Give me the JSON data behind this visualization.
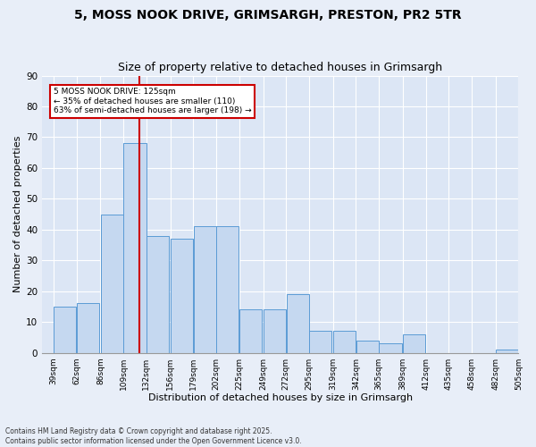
{
  "title_line1": "5, MOSS NOOK DRIVE, GRIMSARGH, PRESTON, PR2 5TR",
  "title_line2": "Size of property relative to detached houses in Grimsargh",
  "xlabel": "Distribution of detached houses by size in Grimsargh",
  "ylabel": "Number of detached properties",
  "bar_color": "#c5d8f0",
  "bar_edge_color": "#5b9bd5",
  "background_color": "#dce6f5",
  "grid_color": "#ffffff",
  "annotation_box_color": "#cc0000",
  "vline_color": "#cc0000",
  "vline_x": 125,
  "annotation_text": "5 MOSS NOOK DRIVE: 125sqm\n← 35% of detached houses are smaller (110)\n63% of semi-detached houses are larger (198) →",
  "bins": [
    39,
    62,
    86,
    109,
    132,
    156,
    179,
    202,
    225,
    249,
    272,
    295,
    319,
    342,
    365,
    389,
    412,
    435,
    458,
    482,
    505
  ],
  "counts": [
    15,
    16,
    45,
    68,
    38,
    37,
    41,
    41,
    14,
    14,
    19,
    7,
    7,
    4,
    3,
    6,
    0,
    0,
    0,
    1
  ],
  "ylim": [
    0,
    90
  ],
  "yticks": [
    0,
    10,
    20,
    30,
    40,
    50,
    60,
    70,
    80,
    90
  ],
  "footer": "Contains HM Land Registry data © Crown copyright and database right 2025.\nContains public sector information licensed under the Open Government Licence v3.0.",
  "annotation_fontsize": 6.5,
  "tick_fontsize": 6.5,
  "label_fontsize": 8,
  "title_fontsize1": 10,
  "title_fontsize2": 9
}
